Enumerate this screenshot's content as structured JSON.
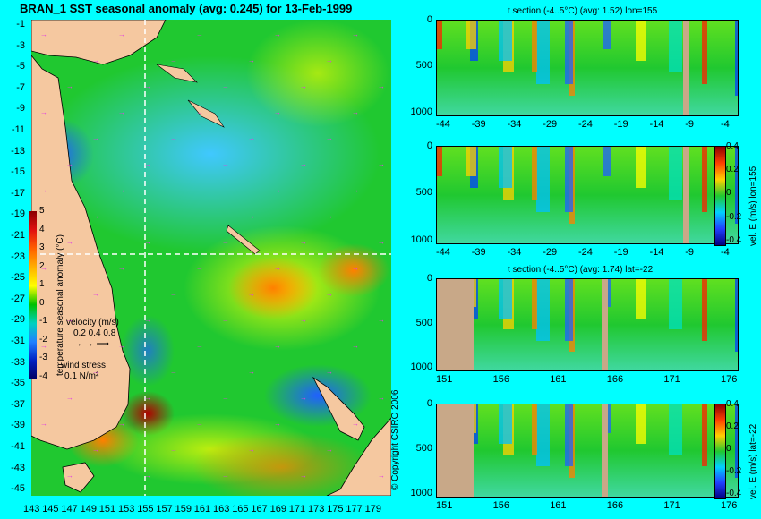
{
  "map": {
    "title": "BRAN_1  SST seasonal anomaly  (avg: 0.245)  for 13-Feb-1999",
    "lat_labels": [
      "-1",
      "-3",
      "-5",
      "-7",
      "-9",
      "-11",
      "-13",
      "-15",
      "-17",
      "-19",
      "-21",
      "-23",
      "-25",
      "-27",
      "-29",
      "-31",
      "-33",
      "-35",
      "-37",
      "-39",
      "-41",
      "-43",
      "-45"
    ],
    "lon_labels": [
      "143",
      "145",
      "147",
      "149",
      "151",
      "153",
      "155",
      "157",
      "159",
      "161",
      "163",
      "165",
      "167",
      "169",
      "171",
      "173",
      "175",
      "177",
      "179"
    ],
    "colorbar": {
      "ticks": [
        "5",
        "4",
        "3",
        "2",
        "1",
        "0",
        "-1",
        "-2",
        "-3",
        "-4"
      ],
      "label": "temperature seasonal anomaly (°C)",
      "colors": [
        "#8b0000",
        "#e01010",
        "#ff6000",
        "#ffb000",
        "#ffff00",
        "#00c000",
        "#00d0c0",
        "#2080ff",
        "#0020c0",
        "#000060"
      ]
    },
    "velocity_label": "velocity (m/s)",
    "velocity_values": "0.2 0.4 0.8",
    "wind_label": "wind stress",
    "wind_value": "0.1 N/m²",
    "copyright": "© Copyright CSIRO 2006",
    "land_color": "#f5c8a0"
  },
  "sections": [
    {
      "title": "t section (-4..5°C) (avg: 1.52) lon=155",
      "x_ticks": [
        "-44",
        "-39",
        "-34",
        "-29",
        "-24",
        "-19",
        "-14",
        "-9",
        "-4"
      ],
      "y_ticks": [
        "0",
        "500",
        "1000"
      ]
    },
    {
      "title": "",
      "x_ticks": [
        "-44",
        "-39",
        "-34",
        "-29",
        "-24",
        "-19",
        "-14",
        "-9",
        "-4"
      ],
      "y_ticks": [
        "0",
        "500",
        "1000"
      ],
      "colorbar_ticks": [
        "0.4",
        "0.2",
        "0",
        "-0.2",
        "-0.4"
      ],
      "colorbar_label": "vel. E (m/s) lon=155"
    },
    {
      "title": "t section (-4..5°C) (avg: 1.74) lat=-22",
      "x_ticks": [
        "151",
        "156",
        "161",
        "166",
        "171",
        "176"
      ],
      "y_ticks": [
        "0",
        "500",
        "1000"
      ]
    },
    {
      "title": "",
      "x_ticks": [
        "151",
        "156",
        "161",
        "166",
        "171",
        "176"
      ],
      "y_ticks": [
        "0",
        "500",
        "1000"
      ],
      "colorbar_ticks": [
        "0.4",
        "0.2",
        "0",
        "-0.2",
        "-0.4"
      ],
      "colorbar_label": "vel. E (m/s) lat=-22"
    }
  ]
}
